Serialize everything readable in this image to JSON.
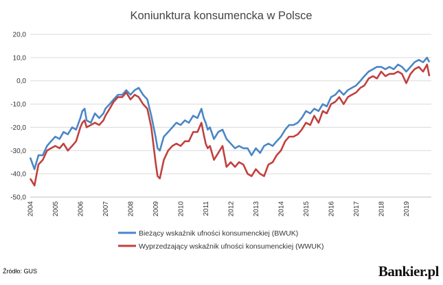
{
  "colors": {
    "bwuk": "#4a86c5",
    "wwuk": "#c0403e",
    "grid": "#d9d9d9"
  },
  "footer": {
    "source": "Źródło: GUS",
    "brand": "Bankier.pl"
  },
  "chart_data": {
    "type": "line",
    "title": "Koniunktura konsumencka w Polsce",
    "xlabel": "",
    "ylabel": "",
    "x_ticks": [
      "2004",
      "2005",
      "2006",
      "2007",
      "2008",
      "2009",
      "2010",
      "2011",
      "2012",
      "2013",
      "2014",
      "2015",
      "2016",
      "2017",
      "2018",
      "2019"
    ],
    "y_ticks": [
      "20,0",
      "10,0",
      "0,0",
      "-10,0",
      "-20,0",
      "-30,0",
      "-40,0",
      "-50,0"
    ],
    "xlim": [
      2004.0,
      2020.0
    ],
    "ylim": [
      -50,
      20
    ],
    "grid": true,
    "legend": "bottom",
    "series": [
      {
        "name": "Bieżący wskaźnik ufności konsumenckiej (BWUK)",
        "color_key": "bwuk",
        "points": [
          [
            2004.0,
            -33
          ],
          [
            2004.17,
            -38
          ],
          [
            2004.33,
            -32
          ],
          [
            2004.5,
            -32
          ],
          [
            2004.67,
            -28
          ],
          [
            2004.83,
            -26
          ],
          [
            2005.0,
            -24
          ],
          [
            2005.17,
            -25
          ],
          [
            2005.33,
            -22
          ],
          [
            2005.5,
            -23
          ],
          [
            2005.67,
            -20
          ],
          [
            2005.83,
            -21
          ],
          [
            2006.0,
            -16
          ],
          [
            2006.08,
            -13
          ],
          [
            2006.17,
            -12
          ],
          [
            2006.25,
            -17
          ],
          [
            2006.42,
            -18
          ],
          [
            2006.58,
            -14
          ],
          [
            2006.75,
            -16
          ],
          [
            2006.92,
            -14
          ],
          [
            2007.0,
            -12
          ],
          [
            2007.17,
            -10
          ],
          [
            2007.33,
            -8
          ],
          [
            2007.5,
            -6
          ],
          [
            2007.67,
            -6
          ],
          [
            2007.83,
            -4
          ],
          [
            2008.0,
            -6
          ],
          [
            2008.17,
            -4
          ],
          [
            2008.33,
            -3
          ],
          [
            2008.5,
            -6
          ],
          [
            2008.67,
            -8
          ],
          [
            2008.83,
            -15
          ],
          [
            2009.0,
            -24
          ],
          [
            2009.08,
            -29
          ],
          [
            2009.17,
            -30
          ],
          [
            2009.33,
            -24
          ],
          [
            2009.5,
            -22
          ],
          [
            2009.67,
            -20
          ],
          [
            2009.83,
            -18
          ],
          [
            2010.0,
            -19
          ],
          [
            2010.17,
            -17
          ],
          [
            2010.33,
            -18
          ],
          [
            2010.5,
            -15
          ],
          [
            2010.67,
            -16
          ],
          [
            2010.83,
            -12
          ],
          [
            2010.92,
            -16
          ],
          [
            2011.0,
            -18
          ],
          [
            2011.08,
            -21
          ],
          [
            2011.17,
            -20
          ],
          [
            2011.33,
            -25
          ],
          [
            2011.5,
            -22
          ],
          [
            2011.67,
            -21
          ],
          [
            2011.83,
            -25
          ],
          [
            2012.0,
            -27
          ],
          [
            2012.17,
            -29
          ],
          [
            2012.33,
            -28
          ],
          [
            2012.5,
            -29
          ],
          [
            2012.67,
            -29
          ],
          [
            2012.83,
            -32
          ],
          [
            2013.0,
            -29
          ],
          [
            2013.17,
            -31
          ],
          [
            2013.33,
            -28
          ],
          [
            2013.5,
            -27
          ],
          [
            2013.67,
            -28
          ],
          [
            2013.83,
            -26
          ],
          [
            2014.0,
            -24
          ],
          [
            2014.17,
            -21
          ],
          [
            2014.33,
            -19
          ],
          [
            2014.5,
            -19
          ],
          [
            2014.67,
            -18
          ],
          [
            2014.83,
            -16
          ],
          [
            2015.0,
            -13
          ],
          [
            2015.17,
            -14
          ],
          [
            2015.33,
            -12
          ],
          [
            2015.5,
            -13
          ],
          [
            2015.67,
            -10
          ],
          [
            2015.83,
            -11
          ],
          [
            2016.0,
            -7
          ],
          [
            2016.17,
            -6
          ],
          [
            2016.33,
            -4
          ],
          [
            2016.5,
            -6
          ],
          [
            2016.67,
            -4
          ],
          [
            2016.83,
            -3
          ],
          [
            2017.0,
            -2
          ],
          [
            2017.17,
            0
          ],
          [
            2017.33,
            2
          ],
          [
            2017.5,
            4
          ],
          [
            2017.67,
            5
          ],
          [
            2017.83,
            6
          ],
          [
            2018.0,
            6
          ],
          [
            2018.17,
            5
          ],
          [
            2018.33,
            6
          ],
          [
            2018.5,
            5
          ],
          [
            2018.67,
            7
          ],
          [
            2018.83,
            6
          ],
          [
            2019.0,
            4
          ],
          [
            2019.17,
            6
          ],
          [
            2019.33,
            8
          ],
          [
            2019.5,
            9
          ],
          [
            2019.67,
            8
          ],
          [
            2019.83,
            10
          ],
          [
            2019.92,
            8
          ]
        ]
      },
      {
        "name": "Wyprzedzający wskaźnik ufności konsumenckiej (WWUK)",
        "color_key": "wwuk",
        "points": [
          [
            2004.0,
            -42
          ],
          [
            2004.17,
            -45
          ],
          [
            2004.33,
            -36
          ],
          [
            2004.5,
            -34
          ],
          [
            2004.67,
            -30
          ],
          [
            2004.83,
            -29
          ],
          [
            2005.0,
            -28
          ],
          [
            2005.17,
            -29
          ],
          [
            2005.33,
            -27
          ],
          [
            2005.5,
            -30
          ],
          [
            2005.67,
            -28
          ],
          [
            2005.83,
            -26
          ],
          [
            2006.0,
            -20
          ],
          [
            2006.08,
            -18
          ],
          [
            2006.17,
            -17
          ],
          [
            2006.25,
            -20
          ],
          [
            2006.42,
            -19
          ],
          [
            2006.58,
            -18
          ],
          [
            2006.75,
            -19
          ],
          [
            2006.92,
            -17
          ],
          [
            2007.0,
            -15
          ],
          [
            2007.17,
            -12
          ],
          [
            2007.33,
            -9
          ],
          [
            2007.5,
            -7
          ],
          [
            2007.67,
            -7
          ],
          [
            2007.83,
            -5
          ],
          [
            2008.0,
            -8
          ],
          [
            2008.17,
            -6
          ],
          [
            2008.33,
            -7
          ],
          [
            2008.5,
            -10
          ],
          [
            2008.67,
            -12
          ],
          [
            2008.83,
            -20
          ],
          [
            2009.0,
            -35
          ],
          [
            2009.08,
            -41
          ],
          [
            2009.17,
            -42
          ],
          [
            2009.33,
            -34
          ],
          [
            2009.5,
            -30
          ],
          [
            2009.67,
            -28
          ],
          [
            2009.83,
            -27
          ],
          [
            2010.0,
            -28
          ],
          [
            2010.17,
            -26
          ],
          [
            2010.33,
            -26
          ],
          [
            2010.5,
            -22
          ],
          [
            2010.67,
            -22
          ],
          [
            2010.83,
            -18
          ],
          [
            2010.92,
            -23
          ],
          [
            2011.0,
            -27
          ],
          [
            2011.08,
            -29
          ],
          [
            2011.17,
            -28
          ],
          [
            2011.33,
            -34
          ],
          [
            2011.5,
            -31
          ],
          [
            2011.67,
            -28
          ],
          [
            2011.83,
            -37
          ],
          [
            2012.0,
            -35
          ],
          [
            2012.17,
            -37
          ],
          [
            2012.33,
            -35
          ],
          [
            2012.5,
            -36
          ],
          [
            2012.67,
            -40
          ],
          [
            2012.83,
            -41
          ],
          [
            2013.0,
            -38
          ],
          [
            2013.17,
            -40
          ],
          [
            2013.33,
            -41
          ],
          [
            2013.5,
            -36
          ],
          [
            2013.67,
            -35
          ],
          [
            2013.83,
            -32
          ],
          [
            2014.0,
            -30
          ],
          [
            2014.17,
            -26
          ],
          [
            2014.33,
            -24
          ],
          [
            2014.5,
            -24
          ],
          [
            2014.67,
            -23
          ],
          [
            2014.83,
            -21
          ],
          [
            2015.0,
            -18
          ],
          [
            2015.17,
            -19
          ],
          [
            2015.33,
            -15
          ],
          [
            2015.5,
            -18
          ],
          [
            2015.67,
            -13
          ],
          [
            2015.83,
            -14
          ],
          [
            2016.0,
            -10
          ],
          [
            2016.17,
            -9
          ],
          [
            2016.33,
            -7
          ],
          [
            2016.5,
            -10
          ],
          [
            2016.67,
            -7
          ],
          [
            2016.83,
            -6
          ],
          [
            2017.0,
            -5
          ],
          [
            2017.17,
            -3
          ],
          [
            2017.33,
            -2
          ],
          [
            2017.5,
            1
          ],
          [
            2017.67,
            2
          ],
          [
            2017.83,
            1
          ],
          [
            2018.0,
            4
          ],
          [
            2018.17,
            2
          ],
          [
            2018.33,
            3
          ],
          [
            2018.5,
            3
          ],
          [
            2018.67,
            4
          ],
          [
            2018.83,
            3
          ],
          [
            2019.0,
            -1
          ],
          [
            2019.17,
            3
          ],
          [
            2019.33,
            5
          ],
          [
            2019.5,
            6
          ],
          [
            2019.67,
            4
          ],
          [
            2019.83,
            7
          ],
          [
            2019.92,
            2
          ]
        ]
      }
    ]
  }
}
